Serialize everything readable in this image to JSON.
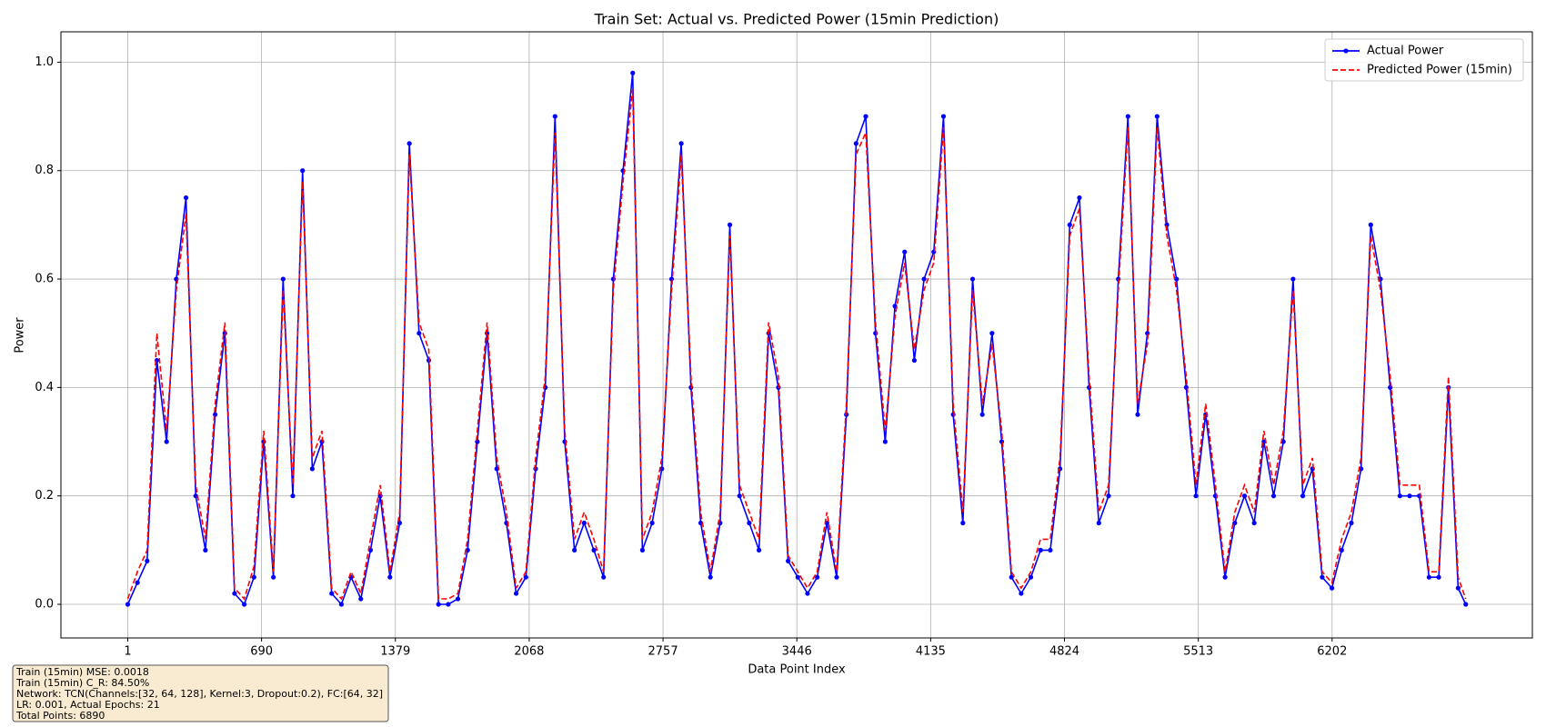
{
  "chart_data": {
    "type": "line",
    "title": "Train Set: Actual vs. Predicted Power (15min Prediction)",
    "x_label": "Data Point Index",
    "y_label": "Power",
    "x": [
      1,
      51,
      101,
      151,
      201,
      251,
      301,
      351,
      401,
      451,
      501,
      551,
      601,
      651,
      701,
      751,
      801,
      851,
      901,
      951,
      1001,
      1051,
      1101,
      1151,
      1201,
      1251,
      1301,
      1351,
      1401,
      1451,
      1501,
      1551,
      1601,
      1651,
      1701,
      1751,
      1801,
      1851,
      1901,
      1951,
      2001,
      2051,
      2101,
      2151,
      2201,
      2251,
      2301,
      2351,
      2401,
      2451,
      2501,
      2551,
      2601,
      2651,
      2701,
      2751,
      2801,
      2851,
      2901,
      2951,
      3001,
      3051,
      3101,
      3151,
      3201,
      3251,
      3301,
      3351,
      3401,
      3451,
      3501,
      3551,
      3601,
      3651,
      3701,
      3751,
      3801,
      3851,
      3901,
      3951,
      4001,
      4051,
      4101,
      4151,
      4201,
      4251,
      4301,
      4351,
      4401,
      4451,
      4501,
      4551,
      4601,
      4651,
      4701,
      4751,
      4801,
      4851,
      4901,
      4951,
      5001,
      5051,
      5101,
      5151,
      5201,
      5251,
      5301,
      5351,
      5401,
      5451,
      5501,
      5551,
      5601,
      5651,
      5701,
      5751,
      5801,
      5851,
      5901,
      5951,
      6001,
      6051,
      6101,
      6151,
      6201,
      6251,
      6301,
      6351,
      6401,
      6451,
      6501,
      6551,
      6601,
      6651,
      6701,
      6751,
      6801,
      6851,
      6890
    ],
    "series": [
      {
        "name": "Actual Power",
        "color": "#0000ff",
        "values": [
          0.0,
          0.04,
          0.08,
          0.45,
          0.3,
          0.6,
          0.75,
          0.2,
          0.1,
          0.35,
          0.5,
          0.02,
          0.0,
          0.05,
          0.3,
          0.05,
          0.6,
          0.2,
          0.8,
          0.25,
          0.3,
          0.02,
          0.0,
          0.05,
          0.01,
          0.1,
          0.2,
          0.05,
          0.15,
          0.85,
          0.5,
          0.45,
          0.0,
          0.0,
          0.01,
          0.1,
          0.3,
          0.5,
          0.25,
          0.15,
          0.02,
          0.05,
          0.25,
          0.4,
          0.9,
          0.3,
          0.1,
          0.15,
          0.1,
          0.05,
          0.6,
          0.8,
          0.98,
          0.1,
          0.15,
          0.25,
          0.6,
          0.85,
          0.4,
          0.15,
          0.05,
          0.15,
          0.7,
          0.2,
          0.15,
          0.1,
          0.5,
          0.4,
          0.08,
          0.05,
          0.02,
          0.05,
          0.15,
          0.05,
          0.35,
          0.85,
          0.9,
          0.5,
          0.3,
          0.55,
          0.65,
          0.45,
          0.6,
          0.65,
          0.9,
          0.35,
          0.15,
          0.6,
          0.35,
          0.5,
          0.3,
          0.05,
          0.02,
          0.05,
          0.1,
          0.1,
          0.25,
          0.7,
          0.75,
          0.4,
          0.15,
          0.2,
          0.6,
          0.9,
          0.35,
          0.5,
          0.9,
          0.7,
          0.6,
          0.4,
          0.2,
          0.35,
          0.2,
          0.05,
          0.15,
          0.2,
          0.15,
          0.3,
          0.2,
          0.3,
          0.6,
          0.2,
          0.25,
          0.05,
          0.03,
          0.1,
          0.15,
          0.25,
          0.7,
          0.6,
          0.4,
          0.2,
          0.2,
          0.2,
          0.05,
          0.05,
          0.4,
          0.03,
          0.0
        ]
      },
      {
        "name": "Predicted Power (15min)",
        "color": "#ff0000",
        "dashed": true,
        "values": [
          0.01,
          0.06,
          0.1,
          0.5,
          0.32,
          0.58,
          0.72,
          0.22,
          0.12,
          0.37,
          0.52,
          0.03,
          0.01,
          0.07,
          0.32,
          0.06,
          0.58,
          0.22,
          0.78,
          0.27,
          0.32,
          0.03,
          0.01,
          0.06,
          0.02,
          0.12,
          0.22,
          0.06,
          0.17,
          0.83,
          0.52,
          0.47,
          0.01,
          0.01,
          0.02,
          0.12,
          0.32,
          0.52,
          0.27,
          0.17,
          0.03,
          0.06,
          0.27,
          0.42,
          0.87,
          0.32,
          0.12,
          0.17,
          0.12,
          0.06,
          0.58,
          0.78,
          0.95,
          0.12,
          0.17,
          0.27,
          0.58,
          0.83,
          0.42,
          0.17,
          0.06,
          0.17,
          0.68,
          0.22,
          0.17,
          0.12,
          0.52,
          0.42,
          0.09,
          0.06,
          0.03,
          0.06,
          0.17,
          0.06,
          0.37,
          0.83,
          0.87,
          0.52,
          0.32,
          0.53,
          0.63,
          0.47,
          0.58,
          0.63,
          0.88,
          0.37,
          0.17,
          0.58,
          0.37,
          0.48,
          0.32,
          0.06,
          0.03,
          0.06,
          0.12,
          0.12,
          0.27,
          0.68,
          0.73,
          0.42,
          0.17,
          0.22,
          0.58,
          0.88,
          0.37,
          0.48,
          0.88,
          0.68,
          0.58,
          0.42,
          0.22,
          0.37,
          0.22,
          0.06,
          0.17,
          0.22,
          0.17,
          0.32,
          0.22,
          0.32,
          0.58,
          0.22,
          0.27,
          0.06,
          0.04,
          0.12,
          0.17,
          0.27,
          0.68,
          0.58,
          0.42,
          0.22,
          0.22,
          0.22,
          0.06,
          0.06,
          0.42,
          0.05,
          0.01
        ]
      }
    ],
    "xlim": [
      -343,
      7233
    ],
    "ylim": [
      -0.062,
      1.056
    ],
    "xticks": [
      1,
      690,
      1379,
      2068,
      2757,
      3446,
      4135,
      4824,
      5513,
      6202
    ],
    "yticks": [
      {
        "value": 0,
        "label": "0.0"
      },
      {
        "value": 0.2,
        "label": "0.2"
      },
      {
        "value": 0.4,
        "label": "0.4"
      },
      {
        "value": 0.6,
        "label": "0.6"
      },
      {
        "value": 0.8,
        "label": "0.8"
      },
      {
        "value": 1,
        "label": "1.0"
      }
    ],
    "grid": true,
    "legend": "upper right",
    "annotations": [
      "Train (15min) MSE: 0.0018",
      "Train (15min) C_R: 84.50%",
      "Network: TCN(Channels:[32, 64, 128], Kernel:3, Dropout:0.2), FC:[64, 32]",
      "LR: 0.001, Actual Epochs: 21",
      "Total Points: 6890"
    ]
  }
}
